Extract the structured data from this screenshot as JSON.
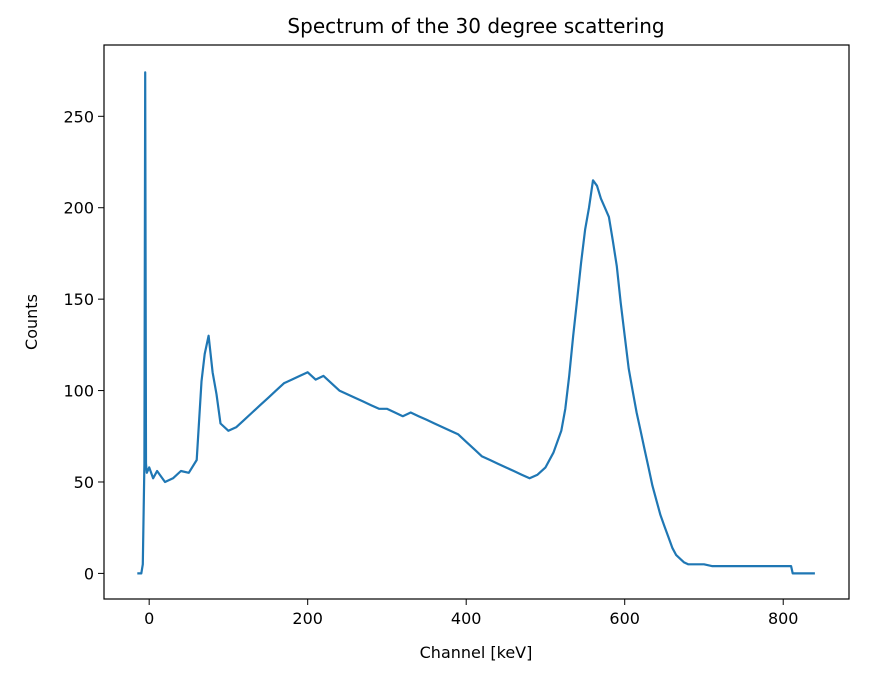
{
  "chart_data": {
    "type": "line",
    "title": "Spectrum of the 30 degree scattering",
    "xlabel": "Channel [keV]",
    "ylabel": "Counts",
    "xlim": [
      -57,
      883
    ],
    "ylim": [
      -14,
      289
    ],
    "xticks": [
      0,
      200,
      400,
      600,
      800
    ],
    "yticks": [
      0,
      50,
      100,
      150,
      200,
      250
    ],
    "grid": false,
    "legend": "none",
    "series": [
      {
        "color": "#1f77b4",
        "x": [
          -15,
          -10,
          -8,
          -6,
          -5,
          -4,
          -3,
          0,
          5,
          10,
          20,
          30,
          40,
          50,
          60,
          66,
          70,
          75,
          80,
          85,
          90,
          100,
          110,
          120,
          130,
          140,
          150,
          160,
          170,
          180,
          190,
          200,
          210,
          220,
          230,
          240,
          250,
          260,
          270,
          280,
          290,
          300,
          310,
          320,
          330,
          340,
          350,
          360,
          370,
          380,
          390,
          400,
          410,
          420,
          430,
          440,
          450,
          460,
          470,
          480,
          490,
          500,
          510,
          520,
          525,
          530,
          535,
          540,
          545,
          550,
          555,
          560,
          565,
          570,
          575,
          580,
          585,
          590,
          595,
          600,
          605,
          610,
          615,
          620,
          625,
          630,
          635,
          640,
          645,
          650,
          655,
          660,
          665,
          670,
          675,
          680,
          685,
          690,
          700,
          710,
          720,
          740,
          760,
          780,
          800,
          810,
          812,
          840
        ],
        "y": [
          0,
          0,
          5,
          60,
          274,
          60,
          55,
          58,
          52,
          56,
          50,
          52,
          56,
          55,
          62,
          105,
          120,
          130,
          110,
          98,
          82,
          78,
          80,
          84,
          88,
          92,
          96,
          100,
          104,
          106,
          108,
          110,
          106,
          108,
          104,
          100,
          98,
          96,
          94,
          92,
          90,
          90,
          88,
          86,
          88,
          86,
          84,
          82,
          80,
          78,
          76,
          72,
          68,
          64,
          62,
          60,
          58,
          56,
          54,
          52,
          54,
          58,
          66,
          78,
          90,
          108,
          130,
          150,
          170,
          188,
          200,
          215,
          212,
          205,
          200,
          195,
          182,
          168,
          148,
          130,
          112,
          100,
          88,
          78,
          68,
          58,
          48,
          40,
          32,
          26,
          20,
          14,
          10,
          8,
          6,
          5,
          5,
          5,
          5,
          4,
          4,
          4,
          4,
          4,
          4,
          4,
          0,
          0
        ]
      }
    ]
  }
}
